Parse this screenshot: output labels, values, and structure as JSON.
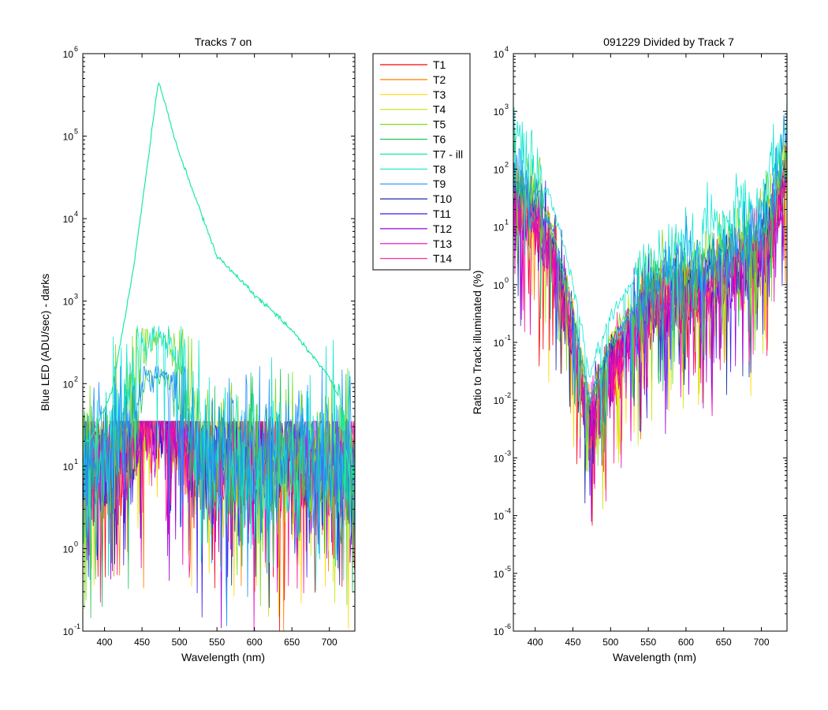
{
  "chart_data": [
    {
      "type": "line",
      "title": "Tracks 7 on",
      "xlabel": "Wavelength (nm)",
      "ylabel": "Blue LED  (ADU/sec) - darks",
      "yscale": "log",
      "xlim": [
        371,
        734
      ],
      "ylim": [
        0.1,
        1000000
      ],
      "xticks": [
        400,
        450,
        500,
        550,
        600,
        650,
        700
      ],
      "yticks": [
        {
          "base": "10",
          "exp": "-1",
          "value": 0.1
        },
        {
          "base": "10",
          "exp": "0",
          "value": 1
        },
        {
          "base": "10",
          "exp": "1",
          "value": 10
        },
        {
          "base": "10",
          "exp": "2",
          "value": 100
        },
        {
          "base": "10",
          "exp": "3",
          "value": 1000
        },
        {
          "base": "10",
          "exp": "4",
          "value": 10000
        },
        {
          "base": "10",
          "exp": "5",
          "value": 100000
        },
        {
          "base": "10",
          "exp": "6",
          "value": 1000000
        }
      ],
      "grid": false,
      "series": [
        {
          "name": "T1",
          "color": "#ff0000",
          "profile": "noise",
          "peak_wavelength": 472,
          "peak_value": 45
        },
        {
          "name": "T2",
          "color": "#ff7f00",
          "profile": "noise",
          "peak_wavelength": 472,
          "peak_value": 45
        },
        {
          "name": "T3",
          "color": "#ffd700",
          "profile": "noise",
          "peak_wavelength": 472,
          "peak_value": 45
        },
        {
          "name": "T4",
          "color": "#c8e600",
          "profile": "noise",
          "peak_wavelength": 472,
          "peak_value": 48
        },
        {
          "name": "T5",
          "color": "#7ddc1f",
          "profile": "near-neighbor",
          "peak_wavelength": 472,
          "peak_value": 370
        },
        {
          "name": "T6",
          "color": "#22c55e",
          "profile": "near-neighbor",
          "peak_wavelength": 472,
          "peak_value": 120
        },
        {
          "name": "T7 - ill",
          "color": "#1de9a0",
          "profile": "illuminated",
          "peak_wavelength": 472,
          "peak_value": 470000,
          "values_at": [
            [
              380,
              20
            ],
            [
              410,
              80
            ],
            [
              440,
              3000
            ],
            [
              472,
              470000
            ],
            [
              500,
              60000
            ],
            [
              550,
              3500
            ],
            [
              600,
              1200
            ],
            [
              650,
              450
            ],
            [
              700,
              120
            ],
            [
              715,
              60
            ],
            [
              725,
              10
            ]
          ]
        },
        {
          "name": "T8",
          "color": "#14e6d2",
          "profile": "near-neighbor",
          "peak_wavelength": 472,
          "peak_value": 400
        },
        {
          "name": "T9",
          "color": "#1e90ff",
          "profile": "near-neighbor",
          "peak_wavelength": 472,
          "peak_value": 130
        },
        {
          "name": "T10",
          "color": "#1a2ca8",
          "profile": "noise",
          "peak_wavelength": 472,
          "peak_value": 60
        },
        {
          "name": "T11",
          "color": "#3b1fe0",
          "profile": "noise",
          "peak_wavelength": 472,
          "peak_value": 55
        },
        {
          "name": "T12",
          "color": "#9b00e0",
          "profile": "noise",
          "peak_wavelength": 472,
          "peak_value": 40
        },
        {
          "name": "T13",
          "color": "#e600c8",
          "profile": "noise",
          "peak_wavelength": 472,
          "peak_value": 40
        },
        {
          "name": "T14",
          "color": "#ff1493",
          "profile": "noise",
          "peak_wavelength": 472,
          "peak_value": 40
        }
      ],
      "noise_floor": 12,
      "legend": "outside-right"
    },
    {
      "type": "line",
      "title": "091229 Divided by Track 7",
      "xlabel": "Wavelength (nm)",
      "ylabel": "Ratio to Track illuminated (%)",
      "yscale": "log",
      "xlim": [
        371,
        734
      ],
      "ylim": [
        1e-06,
        10000
      ],
      "xticks": [
        400,
        450,
        500,
        550,
        600,
        650,
        700
      ],
      "yticks": [
        {
          "base": "10",
          "exp": "-6",
          "value": 1e-06
        },
        {
          "base": "10",
          "exp": "-5",
          "value": 1e-05
        },
        {
          "base": "10",
          "exp": "-4",
          "value": 0.0001
        },
        {
          "base": "10",
          "exp": "-3",
          "value": 0.001
        },
        {
          "base": "10",
          "exp": "-2",
          "value": 0.01
        },
        {
          "base": "10",
          "exp": "-1",
          "value": 0.1
        },
        {
          "base": "10",
          "exp": "0",
          "value": 1
        },
        {
          "base": "10",
          "exp": "1",
          "value": 10
        },
        {
          "base": "10",
          "exp": "2",
          "value": 100
        },
        {
          "base": "10",
          "exp": "3",
          "value": 1000
        },
        {
          "base": "10",
          "exp": "4",
          "value": 10000
        }
      ],
      "grid": false,
      "ratio_envelope": [
        [
          375,
          80
        ],
        [
          420,
          10
        ],
        [
          450,
          0.3
        ],
        [
          472,
          0.008
        ],
        [
          500,
          0.08
        ],
        [
          550,
          0.8
        ],
        [
          600,
          1.5
        ],
        [
          650,
          3
        ],
        [
          700,
          8
        ],
        [
          720,
          40
        ],
        [
          734,
          300
        ]
      ],
      "series_scale": {
        "T5": 3.5,
        "T8": 9,
        "T6": 2.5,
        "T9": 3,
        "T10": 1.4
      }
    }
  ],
  "legend": {
    "entries": [
      "T1",
      "T2",
      "T3",
      "T4",
      "T5",
      "T6",
      "T7 - ill",
      "T8",
      "T9",
      "T10",
      "T11",
      "T12",
      "T13",
      "T14"
    ]
  }
}
